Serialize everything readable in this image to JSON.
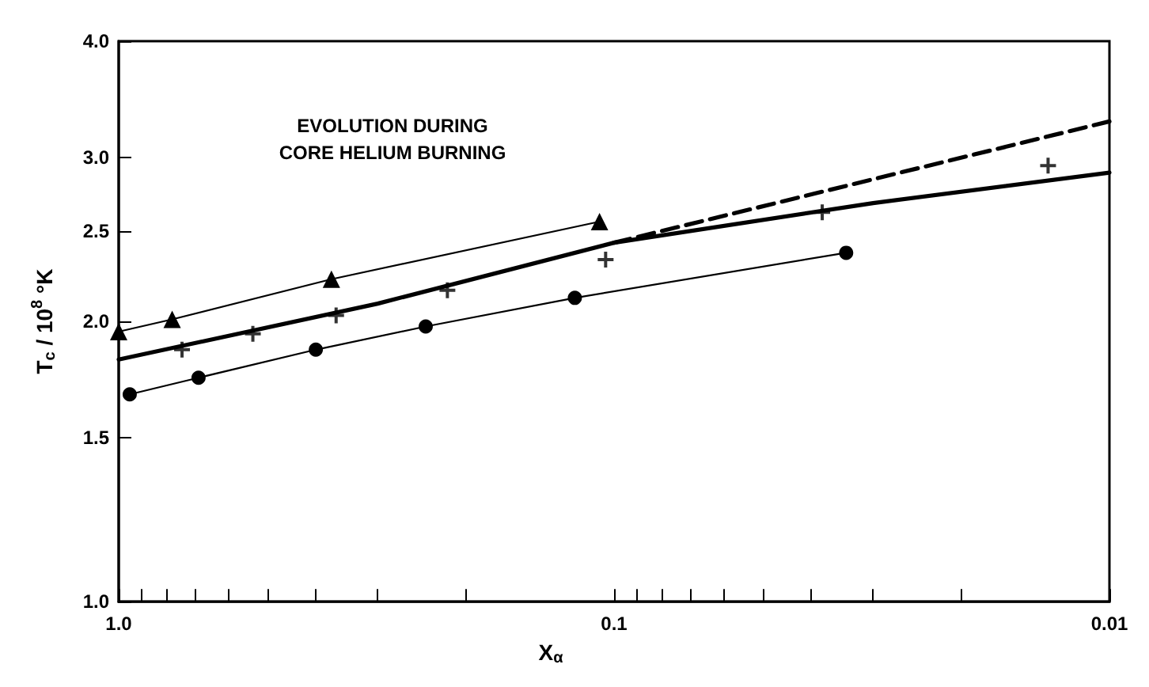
{
  "chart_data": {
    "type": "line",
    "title": "EVOLUTION DURING\nCORE HELIUM BURNING",
    "xlabel": "X$_{α}$",
    "ylabel": "T$_{c}$ / 10$^{8}$ °K",
    "log": "xy",
    "grid": false,
    "xlim": [
      1.0,
      0.01
    ],
    "ylim": [
      1.0,
      4.0
    ],
    "xticks": [
      {
        "value": 1,
        "label": "1.0"
      },
      {
        "value": 0.9,
        "label": null
      },
      {
        "value": 0.8,
        "label": null
      },
      {
        "value": 0.7,
        "label": null
      },
      {
        "value": 0.6,
        "label": null
      },
      {
        "value": 0.5,
        "label": null
      },
      {
        "value": 0.4,
        "label": null
      },
      {
        "value": 0.3,
        "label": null
      },
      {
        "value": 0.2,
        "label": null
      },
      {
        "value": 0.1,
        "label": "0.1"
      },
      {
        "value": 0.09,
        "label": null
      },
      {
        "value": 0.08,
        "label": null
      },
      {
        "value": 0.07,
        "label": null
      },
      {
        "value": 0.06,
        "label": null
      },
      {
        "value": 0.05,
        "label": null
      },
      {
        "value": 0.04,
        "label": null
      },
      {
        "value": 0.03,
        "label": null
      },
      {
        "value": 0.02,
        "label": null
      },
      {
        "value": 0.01,
        "label": "0.01"
      }
    ],
    "yticks": [
      {
        "value": 1,
        "label": "1.0"
      },
      {
        "value": 1.5,
        "label": "1.5"
      },
      {
        "value": 2,
        "label": "2.0"
      },
      {
        "value": 2.5,
        "label": "2.5"
      },
      {
        "value": 3,
        "label": "3.0"
      },
      {
        "value": 4,
        "label": "4.0"
      }
    ],
    "series": [
      {
        "marker": "triangle",
        "line_style": "solid",
        "color": "#000000",
        "x": [
          1.0,
          0.78,
          0.372,
          0.107
        ],
        "values": [
          1.95,
          2.01,
          2.22,
          2.56
        ]
      },
      {
        "marker": "circle",
        "line_style": "solid",
        "color": "#000000",
        "x": [
          0.95,
          0.69,
          0.4,
          0.24,
          0.12,
          0.034
        ],
        "values": [
          1.67,
          1.74,
          1.865,
          1.975,
          2.12,
          2.37
        ]
      },
      {
        "type": "scatter",
        "marker": "cross",
        "color": "#000000",
        "x": [
          0.745,
          0.536,
          0.364,
          0.217,
          0.104,
          0.038,
          0.0133
        ],
        "values": [
          1.865,
          1.94,
          2.03,
          2.16,
          2.33,
          2.62,
          2.94
        ]
      },
      {
        "marker": "none",
        "line_style": "solid",
        "color": "#000000",
        "x": [
          1.0,
          0.3,
          0.1,
          0.03,
          0.01
        ],
        "values": [
          1.82,
          2.09,
          2.43,
          2.68,
          2.89
        ]
      },
      {
        "marker": "none",
        "line_style": "dashed",
        "color": "#000000",
        "x": [
          0.1,
          0.01
        ],
        "values": [
          2.43,
          3.28
        ]
      }
    ]
  }
}
